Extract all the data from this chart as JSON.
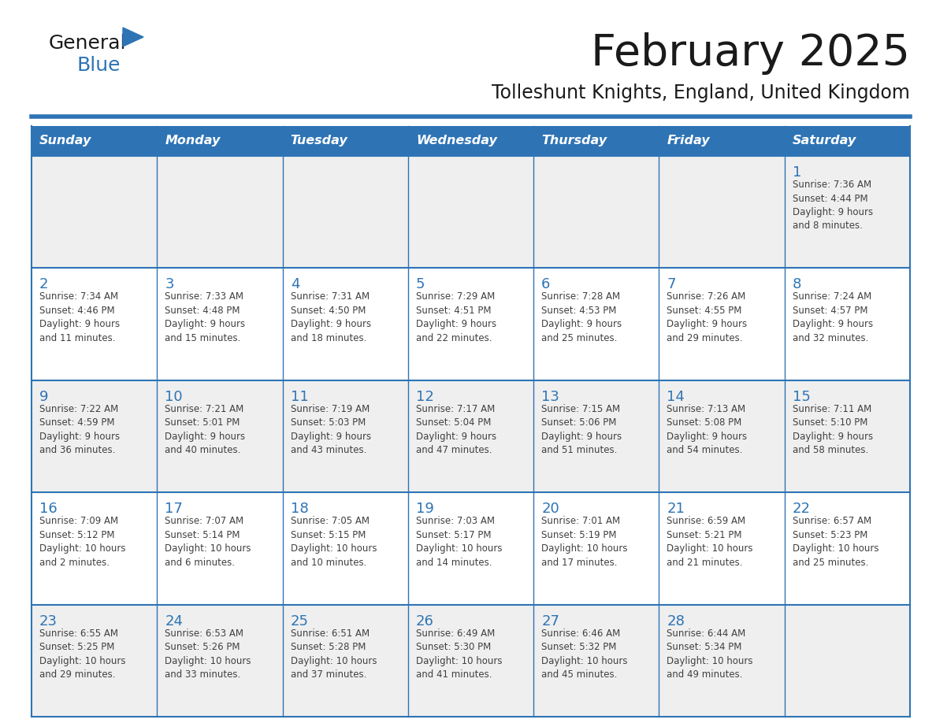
{
  "title": "February 2025",
  "subtitle": "Tolleshunt Knights, England, United Kingdom",
  "days_of_week": [
    "Sunday",
    "Monday",
    "Tuesday",
    "Wednesday",
    "Thursday",
    "Friday",
    "Saturday"
  ],
  "header_bg": "#2E74B5",
  "header_text": "#FFFFFF",
  "row_bg_light": "#FFFFFF",
  "row_bg_dark": "#EFEFEF",
  "cell_border": "#2E74B5",
  "title_color": "#1a1a1a",
  "subtitle_color": "#1a1a1a",
  "day_number_color": "#2E74B5",
  "cell_text_color": "#404040",
  "logo_general_color": "#1a1a1a",
  "logo_blue_color": "#2E74B5",
  "calendar_data": [
    [
      null,
      null,
      null,
      null,
      null,
      null,
      {
        "day": 1,
        "sunrise": "7:36 AM",
        "sunset": "4:44 PM",
        "daylight": "9 hours",
        "daylight2": "and 8 minutes."
      }
    ],
    [
      {
        "day": 2,
        "sunrise": "7:34 AM",
        "sunset": "4:46 PM",
        "daylight": "9 hours",
        "daylight2": "and 11 minutes."
      },
      {
        "day": 3,
        "sunrise": "7:33 AM",
        "sunset": "4:48 PM",
        "daylight": "9 hours",
        "daylight2": "and 15 minutes."
      },
      {
        "day": 4,
        "sunrise": "7:31 AM",
        "sunset": "4:50 PM",
        "daylight": "9 hours",
        "daylight2": "and 18 minutes."
      },
      {
        "day": 5,
        "sunrise": "7:29 AM",
        "sunset": "4:51 PM",
        "daylight": "9 hours",
        "daylight2": "and 22 minutes."
      },
      {
        "day": 6,
        "sunrise": "7:28 AM",
        "sunset": "4:53 PM",
        "daylight": "9 hours",
        "daylight2": "and 25 minutes."
      },
      {
        "day": 7,
        "sunrise": "7:26 AM",
        "sunset": "4:55 PM",
        "daylight": "9 hours",
        "daylight2": "and 29 minutes."
      },
      {
        "day": 8,
        "sunrise": "7:24 AM",
        "sunset": "4:57 PM",
        "daylight": "9 hours",
        "daylight2": "and 32 minutes."
      }
    ],
    [
      {
        "day": 9,
        "sunrise": "7:22 AM",
        "sunset": "4:59 PM",
        "daylight": "9 hours",
        "daylight2": "and 36 minutes."
      },
      {
        "day": 10,
        "sunrise": "7:21 AM",
        "sunset": "5:01 PM",
        "daylight": "9 hours",
        "daylight2": "and 40 minutes."
      },
      {
        "day": 11,
        "sunrise": "7:19 AM",
        "sunset": "5:03 PM",
        "daylight": "9 hours",
        "daylight2": "and 43 minutes."
      },
      {
        "day": 12,
        "sunrise": "7:17 AM",
        "sunset": "5:04 PM",
        "daylight": "9 hours",
        "daylight2": "and 47 minutes."
      },
      {
        "day": 13,
        "sunrise": "7:15 AM",
        "sunset": "5:06 PM",
        "daylight": "9 hours",
        "daylight2": "and 51 minutes."
      },
      {
        "day": 14,
        "sunrise": "7:13 AM",
        "sunset": "5:08 PM",
        "daylight": "9 hours",
        "daylight2": "and 54 minutes."
      },
      {
        "day": 15,
        "sunrise": "7:11 AM",
        "sunset": "5:10 PM",
        "daylight": "9 hours",
        "daylight2": "and 58 minutes."
      }
    ],
    [
      {
        "day": 16,
        "sunrise": "7:09 AM",
        "sunset": "5:12 PM",
        "daylight": "10 hours",
        "daylight2": "and 2 minutes."
      },
      {
        "day": 17,
        "sunrise": "7:07 AM",
        "sunset": "5:14 PM",
        "daylight": "10 hours",
        "daylight2": "and 6 minutes."
      },
      {
        "day": 18,
        "sunrise": "7:05 AM",
        "sunset": "5:15 PM",
        "daylight": "10 hours",
        "daylight2": "and 10 minutes."
      },
      {
        "day": 19,
        "sunrise": "7:03 AM",
        "sunset": "5:17 PM",
        "daylight": "10 hours",
        "daylight2": "and 14 minutes."
      },
      {
        "day": 20,
        "sunrise": "7:01 AM",
        "sunset": "5:19 PM",
        "daylight": "10 hours",
        "daylight2": "and 17 minutes."
      },
      {
        "day": 21,
        "sunrise": "6:59 AM",
        "sunset": "5:21 PM",
        "daylight": "10 hours",
        "daylight2": "and 21 minutes."
      },
      {
        "day": 22,
        "sunrise": "6:57 AM",
        "sunset": "5:23 PM",
        "daylight": "10 hours",
        "daylight2": "and 25 minutes."
      }
    ],
    [
      {
        "day": 23,
        "sunrise": "6:55 AM",
        "sunset": "5:25 PM",
        "daylight": "10 hours",
        "daylight2": "and 29 minutes."
      },
      {
        "day": 24,
        "sunrise": "6:53 AM",
        "sunset": "5:26 PM",
        "daylight": "10 hours",
        "daylight2": "and 33 minutes."
      },
      {
        "day": 25,
        "sunrise": "6:51 AM",
        "sunset": "5:28 PM",
        "daylight": "10 hours",
        "daylight2": "and 37 minutes."
      },
      {
        "day": 26,
        "sunrise": "6:49 AM",
        "sunset": "5:30 PM",
        "daylight": "10 hours",
        "daylight2": "and 41 minutes."
      },
      {
        "day": 27,
        "sunrise": "6:46 AM",
        "sunset": "5:32 PM",
        "daylight": "10 hours",
        "daylight2": "and 45 minutes."
      },
      {
        "day": 28,
        "sunrise": "6:44 AM",
        "sunset": "5:34 PM",
        "daylight": "10 hours",
        "daylight2": "and 49 minutes."
      },
      null
    ]
  ]
}
